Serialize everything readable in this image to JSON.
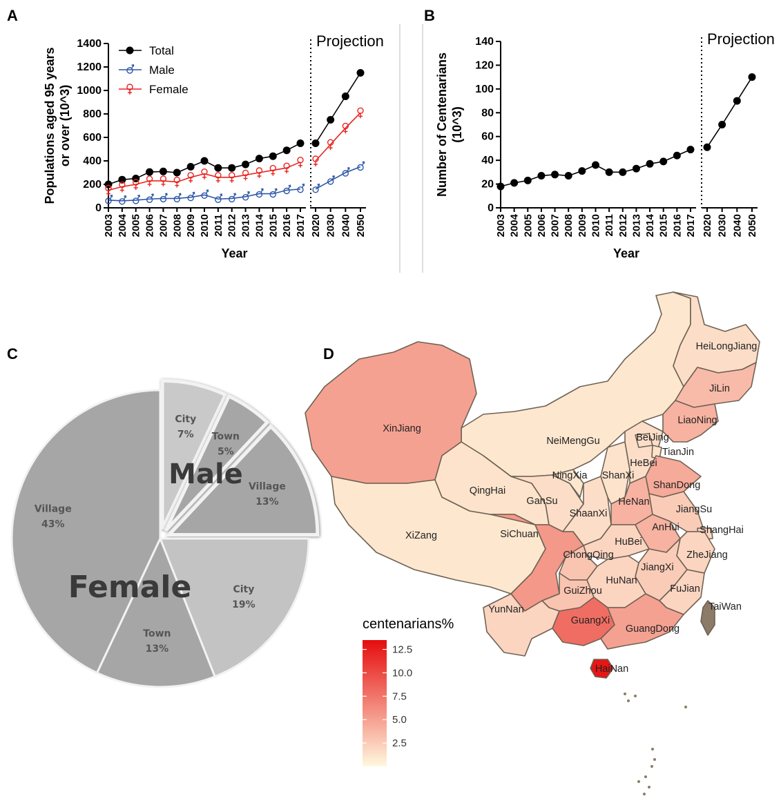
{
  "panels": {
    "a": "A",
    "b": "B",
    "c": "C",
    "d": "D"
  },
  "chart_data": [
    {
      "id": "A",
      "type": "line",
      "categories": [
        "2003",
        "2004",
        "2005",
        "2006",
        "2007",
        "2008",
        "2009",
        "2010",
        "2011",
        "2012",
        "2013",
        "2014",
        "2015",
        "2016",
        "2017",
        "2020",
        "2030",
        "2040",
        "2050"
      ],
      "projection_label": "Projection",
      "projection_start": "2020",
      "ylabel": "Populations aged 95 years or over (10^3)",
      "xlabel": "Year",
      "ylim": [
        0,
        1400
      ],
      "yticks": [
        0,
        200,
        400,
        600,
        800,
        1000,
        1200,
        1400
      ],
      "legend_position": "top-left",
      "series": [
        {
          "name": "Total",
          "color": "#000000",
          "marker": "filled-circle",
          "values": [
            200,
            240,
            250,
            305,
            310,
            300,
            350,
            400,
            340,
            340,
            370,
            420,
            440,
            490,
            550,
            550,
            750,
            950,
            1150
          ]
        },
        {
          "name": "Male",
          "color": "#2b55a8",
          "marker": "male-symbol",
          "values": [
            65,
            60,
            65,
            75,
            80,
            80,
            90,
            110,
            75,
            80,
            95,
            120,
            120,
            150,
            160,
            160,
            230,
            300,
            350
          ]
        },
        {
          "name": "Female",
          "color": "#e8231f",
          "marker": "female-symbol",
          "values": [
            150,
            180,
            200,
            230,
            230,
            220,
            260,
            290,
            260,
            260,
            280,
            300,
            320,
            340,
            390,
            400,
            540,
            680,
            810
          ]
        }
      ]
    },
    {
      "id": "B",
      "type": "line",
      "categories": [
        "2003",
        "2004",
        "2005",
        "2006",
        "2007",
        "2008",
        "2009",
        "2010",
        "2011",
        "2012",
        "2013",
        "2014",
        "2015",
        "2016",
        "2017",
        "2020",
        "2030",
        "2040",
        "2050"
      ],
      "projection_label": "Projection",
      "projection_start": "2020",
      "ylabel": "Number of Centenarians (10^3)",
      "xlabel": "Year",
      "ylim": [
        0,
        140
      ],
      "yticks": [
        0,
        20,
        40,
        60,
        80,
        100,
        120,
        140
      ],
      "series": [
        {
          "name": "",
          "color": "#000000",
          "marker": "filled-circle",
          "values": [
            18,
            21,
            23,
            27,
            28,
            27,
            31,
            36,
            30,
            30,
            33,
            37,
            39,
            44,
            49,
            51,
            70,
            90,
            110
          ]
        }
      ]
    },
    {
      "id": "C",
      "type": "pie",
      "groups": [
        {
          "name": "Male",
          "slices": [
            {
              "label": "City",
              "pct_label": "7%",
              "value": 7,
              "color": "#c9c9c9"
            },
            {
              "label": "Town",
              "pct_label": "5%",
              "value": 5,
              "color": "#a6a6a6"
            },
            {
              "label": "Village",
              "pct_label": "13%",
              "value": 13,
              "color": "#a6a6a6"
            }
          ]
        },
        {
          "name": "Female",
          "slices": [
            {
              "label": "City",
              "pct_label": "19%",
              "value": 19,
              "color": "#c3c3c3"
            },
            {
              "label": "Town",
              "pct_label": "13%",
              "value": 13,
              "color": "#a6a6a6"
            },
            {
              "label": "Village",
              "pct_label": "43%",
              "value": 43,
              "color": "#a6a6a6"
            }
          ]
        }
      ]
    },
    {
      "id": "D",
      "type": "heatmap",
      "legend_title": "centenarians%",
      "legend_ticks": [
        "12.5",
        "10.0",
        "7.5",
        "5.0",
        "2.5"
      ],
      "color_low": "#fff8df",
      "color_high": "#e50d0d",
      "regions": [
        {
          "name": "HeiLongJiang",
          "value": 1.5
        },
        {
          "name": "JiLin",
          "value": 3.5
        },
        {
          "name": "LiaoNing",
          "value": 4.0
        },
        {
          "name": "NeiMengGu",
          "value": 1.0
        },
        {
          "name": "BeiJing",
          "value": 1.5
        },
        {
          "name": "TianJin",
          "value": 1.2
        },
        {
          "name": "HeBei",
          "value": 1.5
        },
        {
          "name": "XinJiang",
          "value": 5.0
        },
        {
          "name": "NingXia",
          "value": 1.0
        },
        {
          "name": "ShanXi",
          "value": 1.2
        },
        {
          "name": "ShanDong",
          "value": 4.5
        },
        {
          "name": "QingHai",
          "value": 1.2
        },
        {
          "name": "GanSu",
          "value": 1.5
        },
        {
          "name": "ShaanXi",
          "value": 1.5
        },
        {
          "name": "HeNan",
          "value": 4.0
        },
        {
          "name": "JiangSu",
          "value": 2.5
        },
        {
          "name": "AnHui",
          "value": 4.0
        },
        {
          "name": "ShangHai",
          "value": 2.0
        },
        {
          "name": "XiZang",
          "value": 1.0
        },
        {
          "name": "SiChuan",
          "value": 5.5
        },
        {
          "name": "HuBei",
          "value": 2.0
        },
        {
          "name": "ChongQing",
          "value": 3.0
        },
        {
          "name": "ZheJiang",
          "value": 2.0
        },
        {
          "name": "JiangXi",
          "value": 2.5
        },
        {
          "name": "HuNan",
          "value": 2.0
        },
        {
          "name": "GuiZhou",
          "value": 3.0
        },
        {
          "name": "FuJian",
          "value": 2.0
        },
        {
          "name": "TaiWan",
          "value": null
        },
        {
          "name": "YunNan",
          "value": 2.0
        },
        {
          "name": "GuangXi",
          "value": 8.0
        },
        {
          "name": "GuangDong",
          "value": 5.0
        },
        {
          "name": "HaiNan",
          "value": 13.0
        }
      ]
    }
  ]
}
